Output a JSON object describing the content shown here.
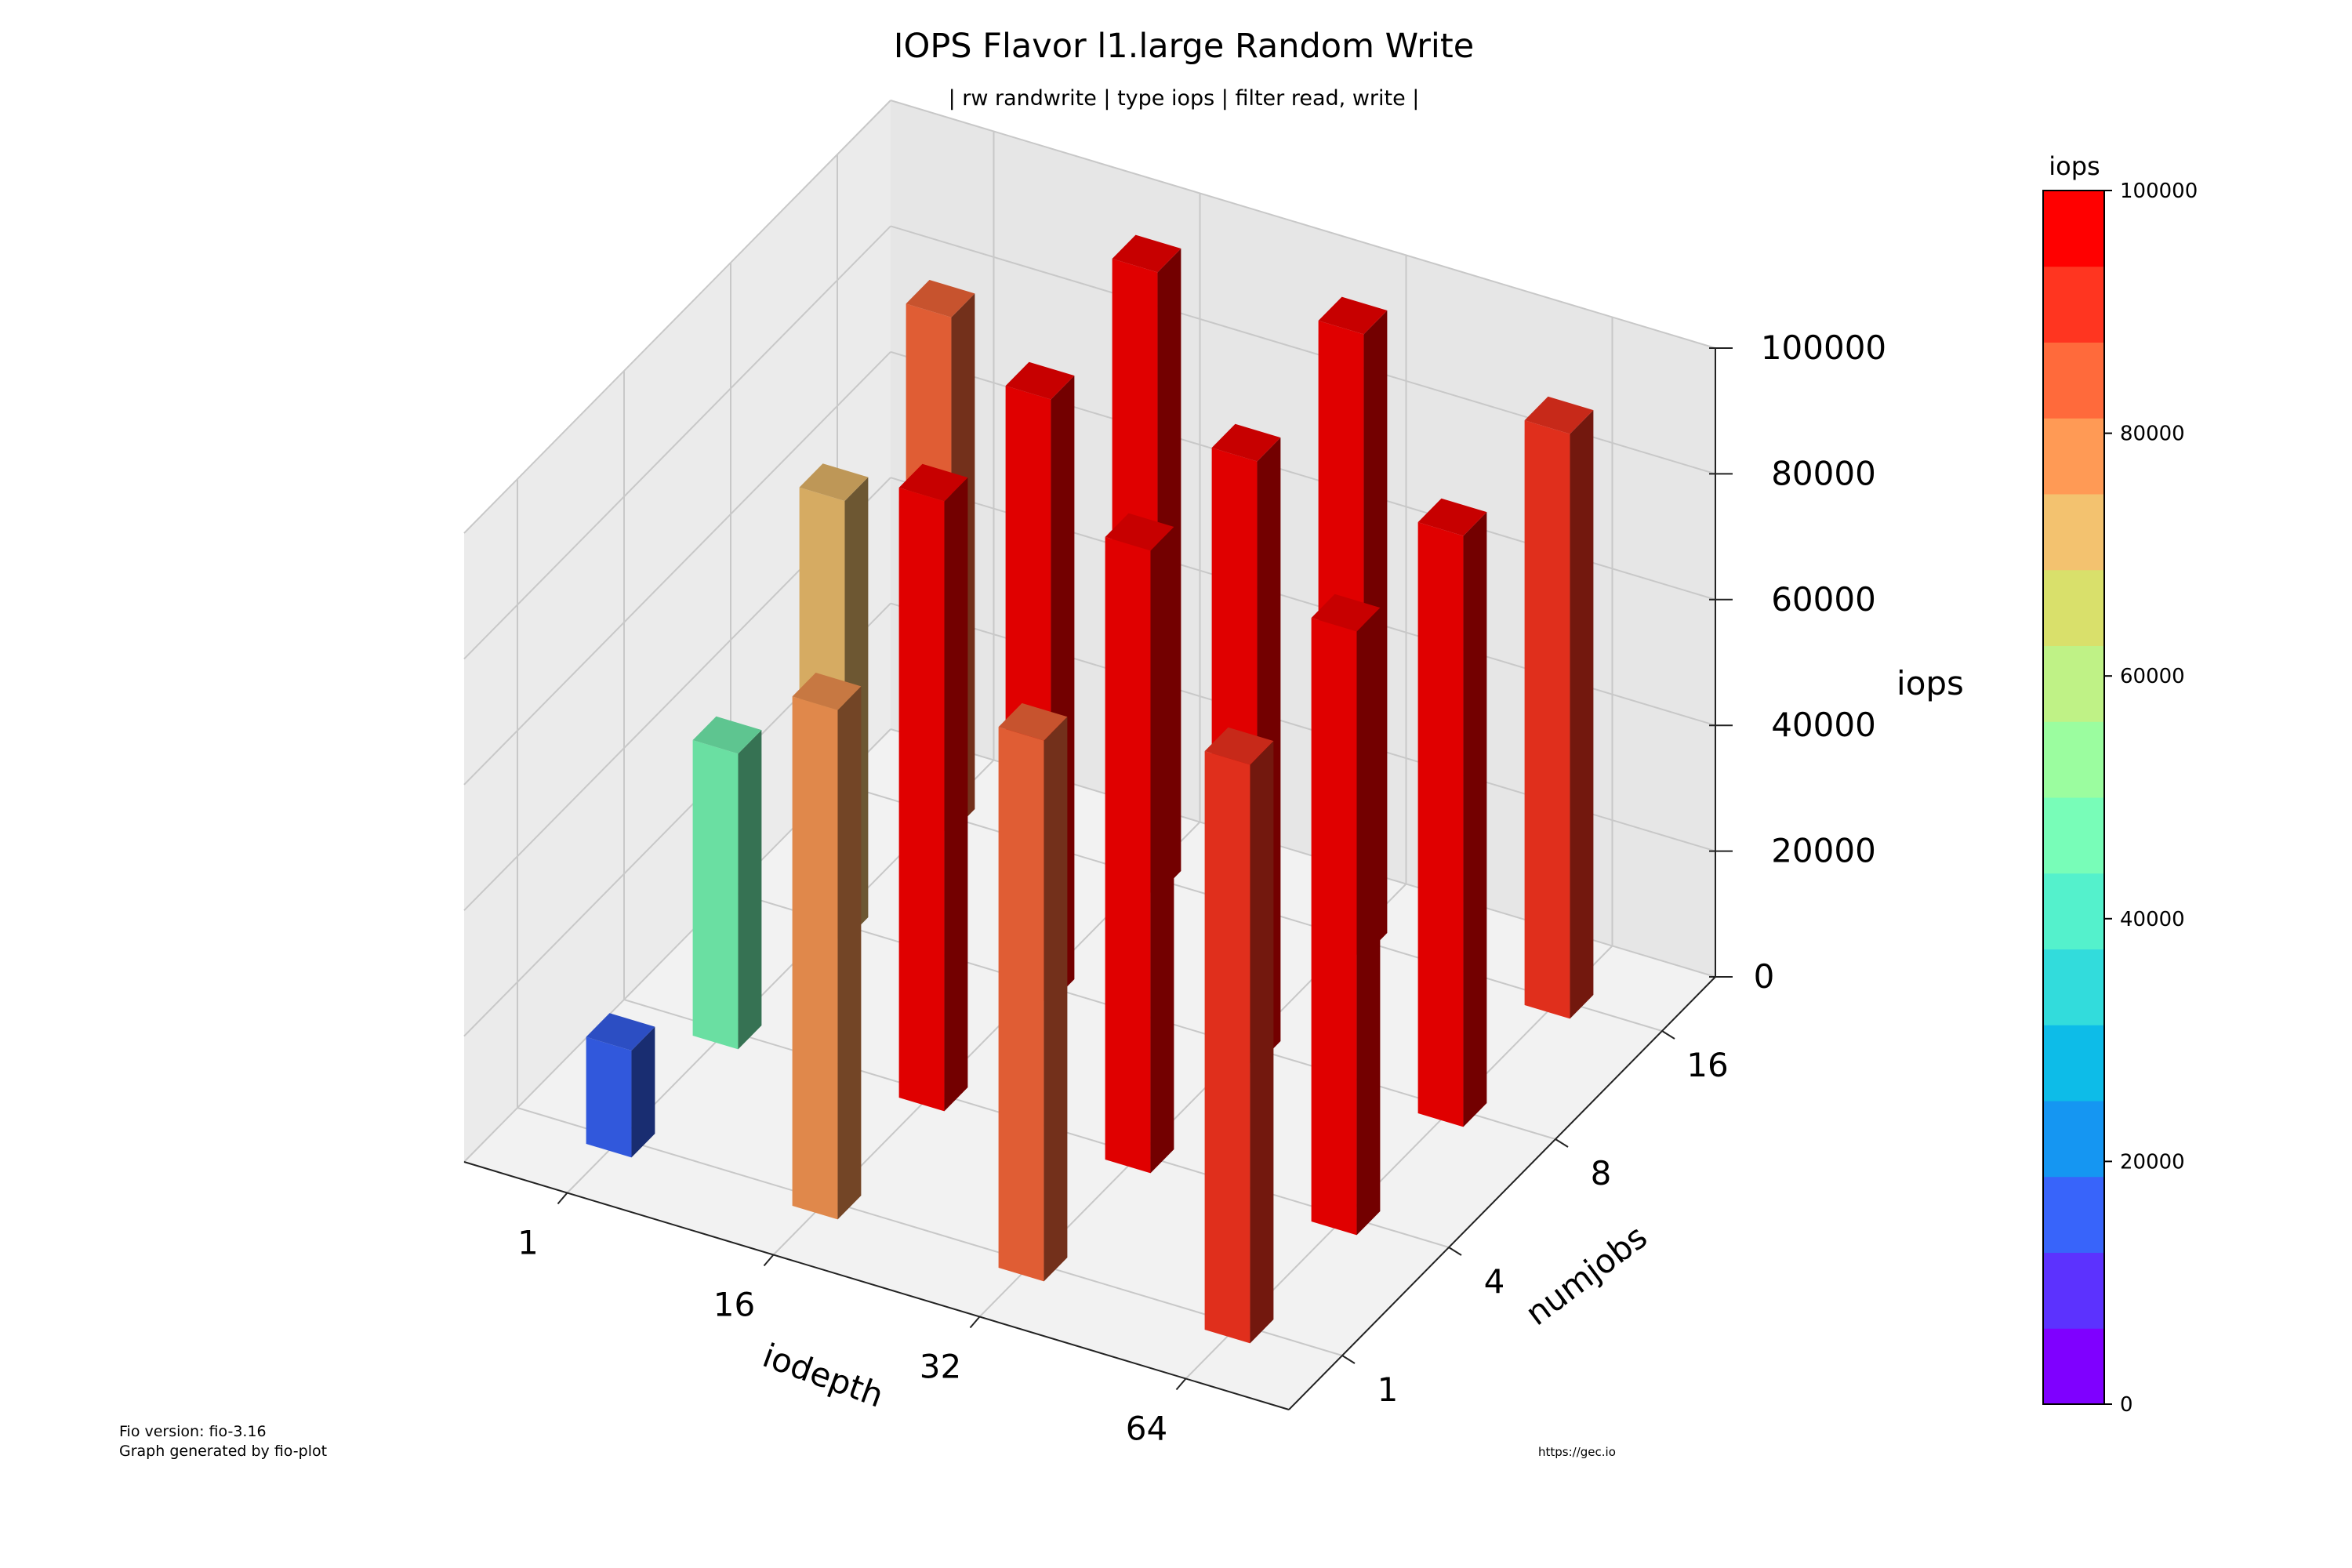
{
  "chart_data": {
    "type": "bar3d",
    "title": "IOPS Flavor l1.large Random Write",
    "subtitle": "| rw randwrite | type iops | filter read, write |",
    "xlabel": "iodepth",
    "ylabel": "numjobs",
    "zlabel": "iops",
    "x_categories": [
      "1",
      "16",
      "32",
      "64"
    ],
    "y_categories": [
      "1",
      "4",
      "8",
      "16"
    ],
    "zlim": [
      0,
      100000
    ],
    "z_ticks": [
      "0",
      "20000",
      "40000",
      "60000",
      "80000",
      "100000"
    ],
    "grid": true,
    "bars": [
      {
        "iodepth": "1",
        "numjobs": "1",
        "iops": 17000
      },
      {
        "iodepth": "1",
        "numjobs": "4",
        "iops": 47000
      },
      {
        "iodepth": "1",
        "numjobs": "8",
        "iops": 70000
      },
      {
        "iodepth": "1",
        "numjobs": "16",
        "iops": 82000
      },
      {
        "iodepth": "16",
        "numjobs": "1",
        "iops": 81000
      },
      {
        "iodepth": "16",
        "numjobs": "4",
        "iops": 97000
      },
      {
        "iodepth": "16",
        "numjobs": "8",
        "iops": 96000
      },
      {
        "iodepth": "16",
        "numjobs": "16",
        "iops": 99000
      },
      {
        "iodepth": "32",
        "numjobs": "1",
        "iops": 86000
      },
      {
        "iodepth": "32",
        "numjobs": "4",
        "iops": 99000
      },
      {
        "iodepth": "32",
        "numjobs": "8",
        "iops": 96000
      },
      {
        "iodepth": "32",
        "numjobs": "16",
        "iops": 99000
      },
      {
        "iodepth": "64",
        "numjobs": "1",
        "iops": 92000
      },
      {
        "iodepth": "64",
        "numjobs": "4",
        "iops": 96000
      },
      {
        "iodepth": "64",
        "numjobs": "8",
        "iops": 94000
      },
      {
        "iodepth": "64",
        "numjobs": "16",
        "iops": 93000
      }
    ],
    "colorbar": {
      "label": "iops",
      "ticks": [
        "0",
        "20000",
        "40000",
        "60000",
        "80000",
        "100000"
      ],
      "colors": [
        "#7f00ff",
        "#5c32fe",
        "#3864fa",
        "#1596f2",
        "#0dbce8",
        "#32dcdc",
        "#54f1cc",
        "#78fdb8",
        "#9bfd9f",
        "#bff286",
        "#d9e06b",
        "#f3c26f",
        "#ff9a55",
        "#ff6a3b",
        "#ff3520",
        "#ff0000"
      ]
    }
  },
  "footer": {
    "fio_version": "Fio version: fio-3.16",
    "generated_by": "Graph generated by fio-plot",
    "url": "https://gec.io"
  }
}
